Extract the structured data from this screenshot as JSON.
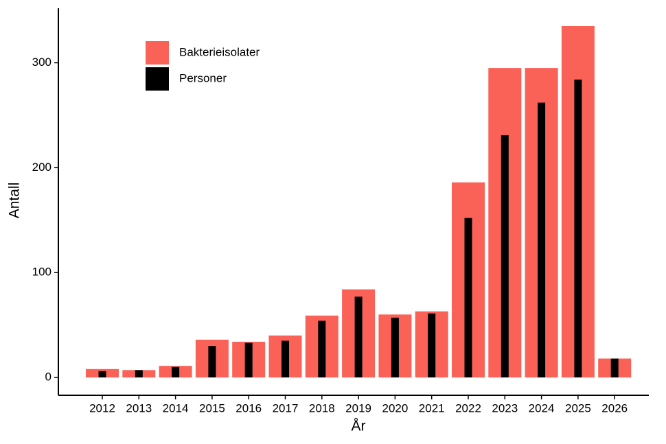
{
  "chart_data": {
    "type": "bar",
    "x_label": "År",
    "y_label": "Antall",
    "categories": [
      "2012",
      "2013",
      "2014",
      "2015",
      "2016",
      "2017",
      "2018",
      "2019",
      "2020",
      "2021",
      "2022",
      "2023",
      "2024",
      "2025",
      "2026"
    ],
    "series": [
      {
        "name": "Bakterieisolater",
        "color": "#fa6157",
        "values": [
          8,
          7,
          11,
          36,
          34,
          40,
          59,
          84,
          60,
          63,
          186,
          295,
          295,
          335,
          18
        ]
      },
      {
        "name": "Personer",
        "color": "#000000",
        "values": [
          6,
          7,
          10,
          30,
          33,
          35,
          54,
          77,
          57,
          61,
          152,
          231,
          262,
          284,
          18
        ]
      }
    ],
    "ylim": [
      -17,
      352
    ],
    "yticks": [
      0,
      100,
      200,
      300
    ],
    "legend": "top-left"
  }
}
